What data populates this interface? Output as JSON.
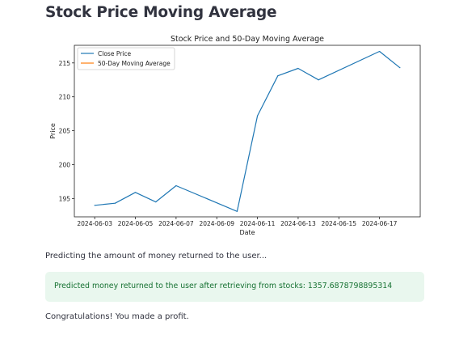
{
  "page": {
    "title": "Stock Price Moving Average",
    "status_text": "Predicting the amount of money returned to the user...",
    "success_text": "Predicted money returned to the user after retrieving from stocks: 1357.6878798895314",
    "result_text": "Congratulations! You made a profit."
  },
  "colors": {
    "close_price": "#1f77b4",
    "moving_average": "#ff7f0e",
    "success_bg": "#e9f7ee",
    "success_text": "#177233"
  },
  "chart_data": {
    "type": "line",
    "title": "Stock Price and 50-Day Moving Average",
    "xlabel": "Date",
    "ylabel": "Price",
    "x_ticks": [
      "2024-06-03",
      "2024-06-05",
      "2024-06-07",
      "2024-06-09",
      "2024-06-11",
      "2024-06-13",
      "2024-06-15",
      "2024-06-17"
    ],
    "y_ticks": [
      195,
      200,
      205,
      210,
      215
    ],
    "xlim": [
      "2024-06-02",
      "2024-06-19"
    ],
    "ylim": [
      192.3,
      217.6
    ],
    "legend_position": "upper-left",
    "grid": false,
    "series": [
      {
        "name": "Close Price",
        "x": [
          "2024-06-03",
          "2024-06-04",
          "2024-06-05",
          "2024-06-06",
          "2024-06-07",
          "2024-06-10",
          "2024-06-11",
          "2024-06-12",
          "2024-06-13",
          "2024-06-14",
          "2024-06-17",
          "2024-06-18"
        ],
        "y": [
          194.0,
          194.3,
          195.9,
          194.5,
          196.9,
          193.1,
          207.2,
          213.1,
          214.2,
          212.5,
          216.7,
          214.3
        ]
      },
      {
        "name": "50-Day Moving Average",
        "x": [],
        "y": []
      }
    ]
  }
}
